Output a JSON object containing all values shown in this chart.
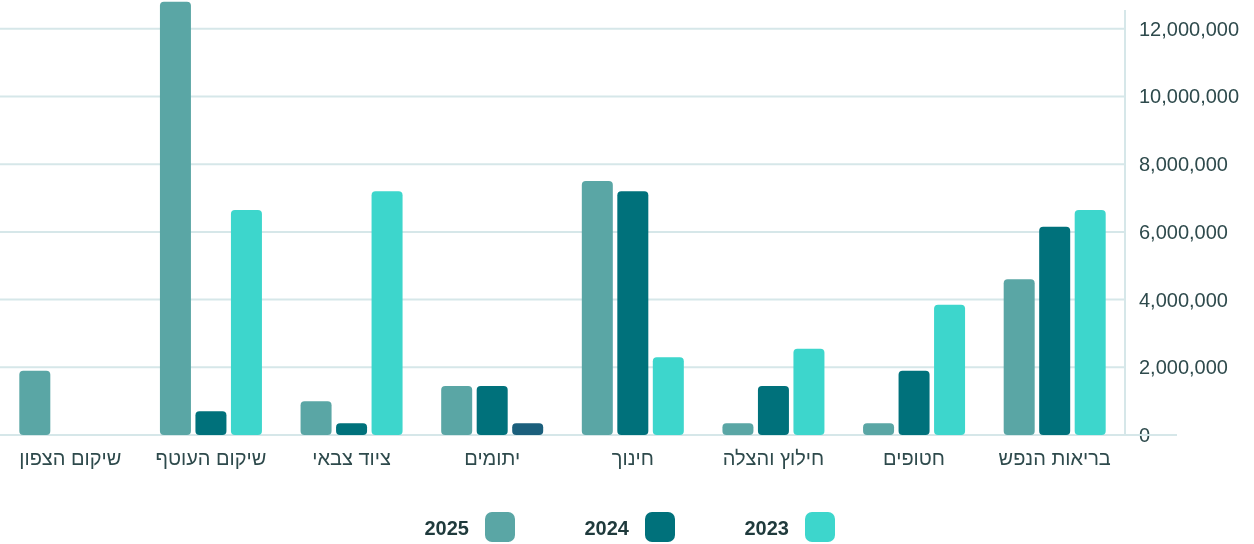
{
  "chart_data": {
    "type": "bar",
    "categories": [
      "שיקום הצפון",
      "שיקום העוטף",
      "ציוד צבאי",
      "יתומים",
      "חינוך",
      "חילוץ והצלה",
      "חטופים",
      "בריאות הנפש"
    ],
    "series": [
      {
        "name": "2025",
        "color": "#5aa6a5",
        "values": [
          1900000,
          12800000,
          1000000,
          1450000,
          7500000,
          350000,
          350000,
          4600000
        ]
      },
      {
        "name": "2024",
        "color": "#00717b",
        "values": [
          null,
          700000,
          350000,
          1450000,
          7200000,
          1450000,
          1900000,
          6150000
        ]
      },
      {
        "name": "2023",
        "color": "#3dd6cc",
        "colors": [
          null,
          "#3dd6cc",
          "#3dd6cc",
          "#1b5f7c",
          "#3dd6cc",
          "#3dd6cc",
          "#3dd6cc",
          "#3dd6cc"
        ],
        "values": [
          null,
          6650000,
          7200000,
          350000,
          2300000,
          2550000,
          3850000,
          6650000
        ]
      }
    ],
    "ylim": [
      0,
      12850000
    ],
    "yticks": [
      0,
      {
        "value": 2000000,
        "label": "2,000,000"
      },
      {
        "value": 4000000,
        "label": "4,000,000"
      },
      {
        "value": 6000000,
        "label": "6,000,000"
      },
      {
        "value": 8000000,
        "label": "8,000,000"
      },
      {
        "value": 10000000,
        "label": "10,000,000"
      },
      {
        "value": 12000000,
        "label": "12,000,000"
      }
    ],
    "grid": "y",
    "legend": "bottom"
  }
}
